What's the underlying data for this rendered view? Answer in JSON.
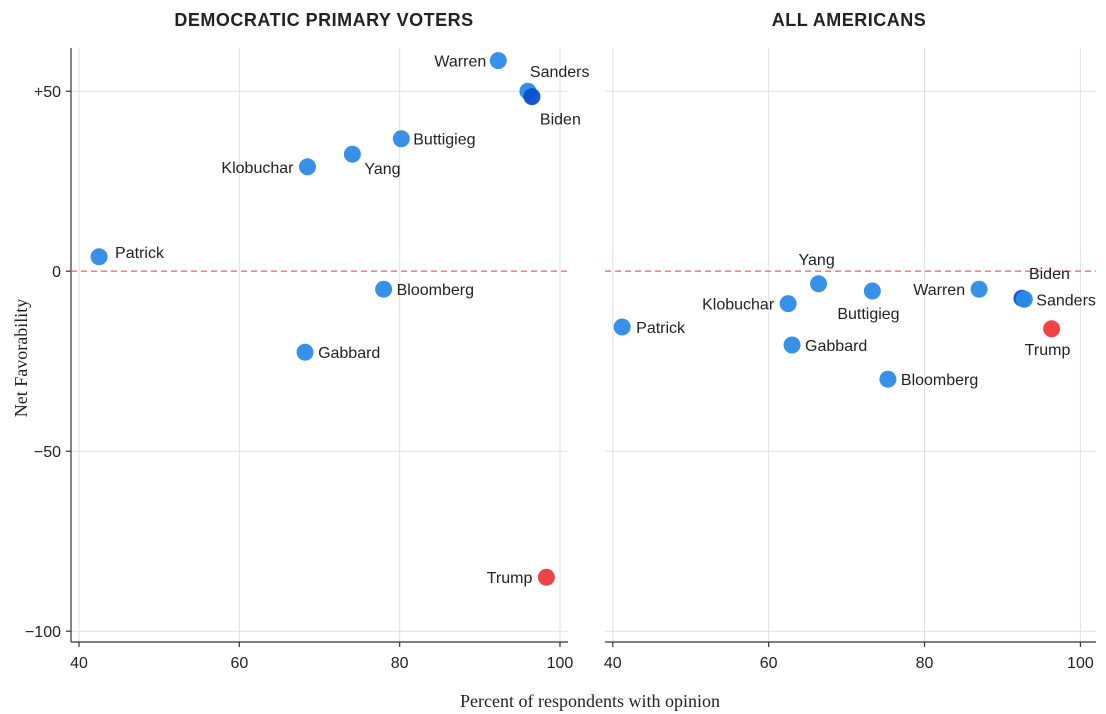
{
  "chart_data": [
    {
      "type": "scatter",
      "title": "DEMOCRATIC PRIMARY VOTERS",
      "xlim": [
        39,
        101
      ],
      "ylim": [
        -103,
        62
      ],
      "xticks": [
        40,
        60,
        80,
        100
      ],
      "yticks": [
        {
          "value": 50,
          "label": "+50"
        },
        {
          "value": 0,
          "label": "0"
        },
        {
          "value": -50,
          "label": "−50"
        },
        {
          "value": -100,
          "label": "−100"
        }
      ],
      "reference_line_y": 0,
      "points": [
        {
          "name": "Warren",
          "x": 92.3,
          "y": 58.5,
          "color": "#2b8be6"
        },
        {
          "name": "Sanders",
          "x": 96.0,
          "y": 50.0,
          "color": "#2b8be6"
        },
        {
          "name": "Biden",
          "x": 96.5,
          "y": 48.5,
          "color": "#0a4fd0"
        },
        {
          "name": "Buttigieg",
          "x": 80.2,
          "y": 36.8,
          "color": "#2b8be6"
        },
        {
          "name": "Yang",
          "x": 74.1,
          "y": 32.5,
          "color": "#2b8be6"
        },
        {
          "name": "Klobuchar",
          "x": 68.5,
          "y": 29.0,
          "color": "#2b8be6"
        },
        {
          "name": "Patrick",
          "x": 42.5,
          "y": 4.0,
          "color": "#2b8be6"
        },
        {
          "name": "Bloomberg",
          "x": 78.0,
          "y": -5.0,
          "color": "#2b8be6"
        },
        {
          "name": "Gabbard",
          "x": 68.2,
          "y": -22.5,
          "color": "#2b8be6"
        },
        {
          "name": "Trump",
          "x": 98.3,
          "y": -85.0,
          "color": "#ee3a3a"
        }
      ]
    },
    {
      "type": "scatter",
      "title": "ALL AMERICANS",
      "xlim": [
        39,
        102
      ],
      "ylim": [
        -103,
        62
      ],
      "xticks": [
        40,
        60,
        80,
        100
      ],
      "yticks": [],
      "reference_line_y": 0,
      "points": [
        {
          "name": "Yang",
          "x": 66.4,
          "y": -3.5,
          "color": "#2b8be6"
        },
        {
          "name": "Biden",
          "x": 92.5,
          "y": -7.5,
          "color": "#0a4fd0"
        },
        {
          "name": "Sanders",
          "x": 92.8,
          "y": -7.8,
          "color": "#2b8be6"
        },
        {
          "name": "Warren",
          "x": 87.0,
          "y": -5.0,
          "color": "#2b8be6"
        },
        {
          "name": "Buttigieg",
          "x": 73.3,
          "y": -5.5,
          "color": "#2b8be6"
        },
        {
          "name": "Klobuchar",
          "x": 62.5,
          "y": -9.0,
          "color": "#2b8be6"
        },
        {
          "name": "Patrick",
          "x": 41.2,
          "y": -15.5,
          "color": "#2b8be6"
        },
        {
          "name": "Trump",
          "x": 96.3,
          "y": -16.0,
          "color": "#ee3a3a"
        },
        {
          "name": "Gabbard",
          "x": 63.0,
          "y": -20.5,
          "color": "#2b8be6"
        },
        {
          "name": "Bloomberg",
          "x": 75.3,
          "y": -30.0,
          "color": "#2b8be6"
        }
      ]
    }
  ],
  "xlabel": "Percent of respondents with opinion",
  "ylabel": "Net Favorability"
}
